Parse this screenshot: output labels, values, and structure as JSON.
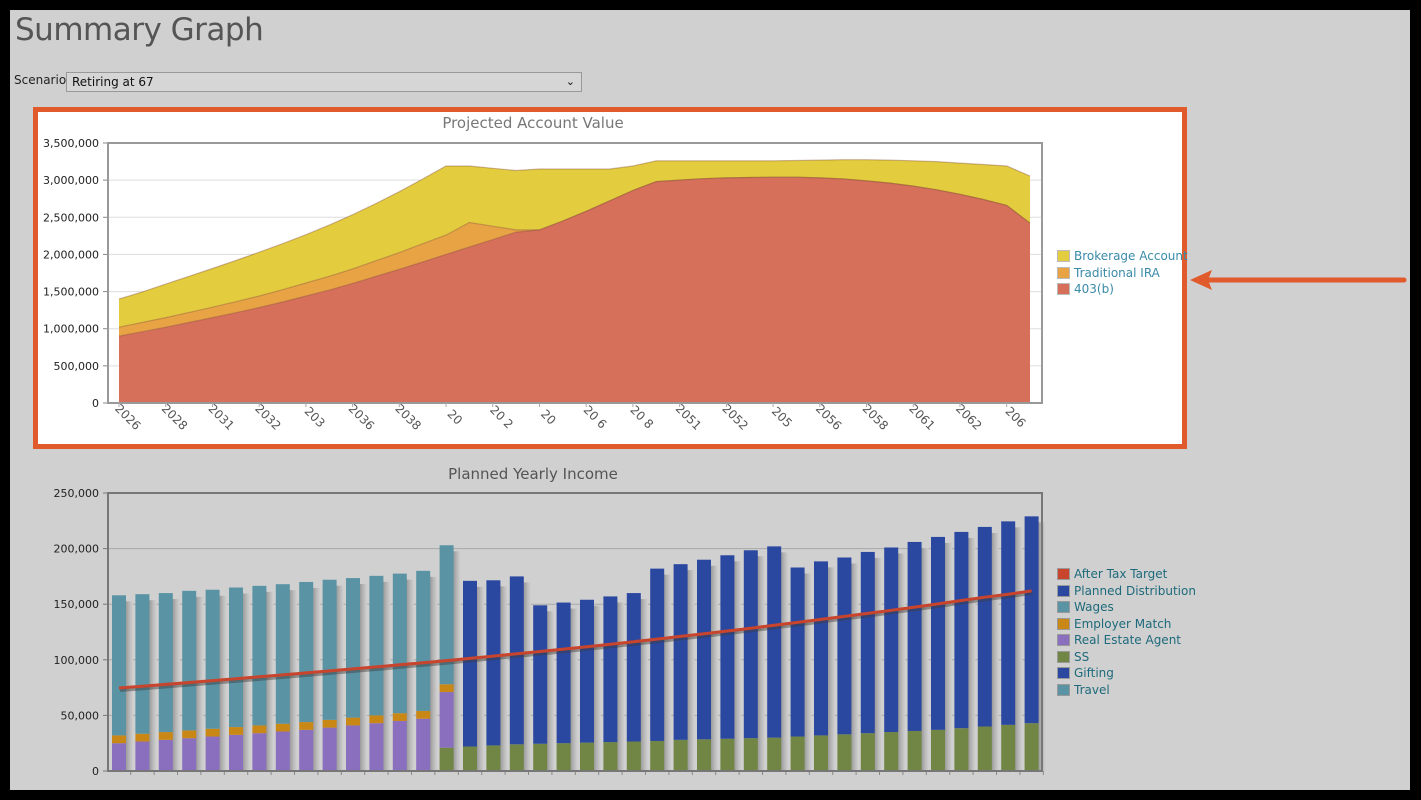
{
  "page": {
    "title": "Summary Graph",
    "scenario_label": "Scenario",
    "scenario_value": "Retiring at 67",
    "highlight_color": "#e05a2b"
  },
  "chart_data": [
    {
      "type": "area",
      "stacked": true,
      "title": "Projected Account Value",
      "xlabel": "",
      "ylabel": "",
      "ylim": [
        0,
        3500000
      ],
      "yticks": [
        0,
        500000,
        1000000,
        1500000,
        2000000,
        2500000,
        3000000,
        3500000
      ],
      "ytick_labels": [
        "0",
        "500,000",
        "1,000,000",
        "1,500,000",
        "2,000,000",
        "2,500,000",
        "3,000,000",
        "3,500,000"
      ],
      "xtick_labels": [
        "2026",
        "2028",
        "2031",
        "2032",
        "203",
        "2036",
        "2038",
        "20 ",
        "20 2",
        "20",
        "20 6",
        "20 8",
        "2051",
        "2052",
        "205",
        "2056",
        "2058",
        "2061",
        "2062",
        "206"
      ],
      "grid": true,
      "legend_position": "right",
      "x": [
        2026,
        2027,
        2028,
        2029,
        2030,
        2031,
        2032,
        2033,
        2034,
        2035,
        2036,
        2037,
        2038,
        2039,
        2040,
        2041,
        2042,
        2043,
        2044,
        2045,
        2046,
        2047,
        2048,
        2049,
        2050,
        2051,
        2052,
        2053,
        2054,
        2055,
        2056,
        2057,
        2058,
        2059,
        2060,
        2061,
        2062,
        2063,
        2064,
        2065
      ],
      "series": [
        {
          "name": "403(b)",
          "color": "#d6705a",
          "values": [
            900000,
            960000,
            1020000,
            1085000,
            1150000,
            1215000,
            1285000,
            1360000,
            1440000,
            1520000,
            1610000,
            1705000,
            1800000,
            1900000,
            2000000,
            2100000,
            2200000,
            2300000,
            2330000,
            2450000,
            2580000,
            2720000,
            2860000,
            2980000,
            3000000,
            3020000,
            3030000,
            3035000,
            3040000,
            3040000,
            3030000,
            3015000,
            2990000,
            2960000,
            2920000,
            2870000,
            2810000,
            2740000,
            2660000,
            2420000
          ]
        },
        {
          "name": "Traditional IRA",
          "color": "#e8a444",
          "values": [
            120000,
            125000,
            130000,
            135000,
            140000,
            148000,
            155000,
            165000,
            175000,
            185000,
            195000,
            210000,
            225000,
            245000,
            260000,
            330000,
            180000,
            30000,
            0,
            0,
            0,
            0,
            0,
            0,
            0,
            0,
            0,
            0,
            0,
            0,
            0,
            0,
            0,
            0,
            0,
            0,
            0,
            0,
            0,
            0
          ]
        },
        {
          "name": "Brokerage Account",
          "color": "#e3cd3f",
          "values": [
            380000,
            410000,
            450000,
            485000,
            520000,
            555000,
            590000,
            620000,
            650000,
            690000,
            730000,
            770000,
            820000,
            870000,
            930000,
            760000,
            780000,
            800000,
            820000,
            700000,
            570000,
            430000,
            330000,
            280000,
            260000,
            240000,
            230000,
            225000,
            220000,
            225000,
            240000,
            260000,
            285000,
            310000,
            340000,
            380000,
            420000,
            470000,
            530000,
            636000
          ]
        }
      ]
    },
    {
      "type": "bar",
      "stacked": true,
      "title": "Planned Yearly Income",
      "xlabel": "",
      "ylabel": "",
      "ylim": [
        0,
        250000
      ],
      "yticks": [
        0,
        50000,
        100000,
        150000,
        200000,
        250000
      ],
      "ytick_labels": [
        "0",
        "50,000",
        "100,000",
        "150,000",
        "200,000",
        "250,000"
      ],
      "grid": true,
      "legend_position": "right",
      "x": [
        2026,
        2027,
        2028,
        2029,
        2030,
        2031,
        2032,
        2033,
        2034,
        2035,
        2036,
        2037,
        2038,
        2039,
        2040,
        2041,
        2042,
        2043,
        2044,
        2045,
        2046,
        2047,
        2048,
        2049,
        2050,
        2051,
        2052,
        2053,
        2054,
        2055,
        2056,
        2057,
        2058,
        2059,
        2060,
        2061,
        2062,
        2063,
        2064,
        2065
      ],
      "legend": [
        {
          "name": "After Tax Target",
          "color": "#c8442c"
        },
        {
          "name": "Planned Distribution",
          "color": "#2b48a0"
        },
        {
          "name": "Wages",
          "color": "#5a93a4"
        },
        {
          "name": "Employer Match",
          "color": "#c98716"
        },
        {
          "name": "Real Estate Agent",
          "color": "#8a6fbf"
        },
        {
          "name": "SS",
          "color": "#718544"
        },
        {
          "name": "Gifting",
          "color": "#2b48a0"
        },
        {
          "name": "Travel",
          "color": "#5a93a4"
        }
      ],
      "series": [
        {
          "name": "SS",
          "color": "#718544",
          "values": [
            0,
            0,
            0,
            0,
            0,
            0,
            0,
            0,
            0,
            0,
            0,
            0,
            0,
            0,
            21000,
            22000,
            23000,
            24000,
            24500,
            25000,
            25500,
            26000,
            26500,
            27000,
            28000,
            28500,
            29000,
            29500,
            30000,
            31000,
            32000,
            33000,
            34000,
            35000,
            36000,
            37000,
            38500,
            40000,
            41500,
            43000
          ]
        },
        {
          "name": "Real Estate Agent",
          "color": "#8a6fbf",
          "values": [
            25000,
            26500,
            28000,
            29500,
            31000,
            32500,
            34000,
            35500,
            37000,
            39000,
            41000,
            43000,
            45000,
            47000,
            50000,
            0,
            0,
            0,
            0,
            0,
            0,
            0,
            0,
            0,
            0,
            0,
            0,
            0,
            0,
            0,
            0,
            0,
            0,
            0,
            0,
            0,
            0,
            0,
            0,
            0
          ]
        },
        {
          "name": "Employer Match",
          "color": "#c98716",
          "values": [
            7000,
            7000,
            7000,
            7000,
            7000,
            7000,
            7000,
            7000,
            7000,
            7000,
            7000,
            7000,
            7000,
            7000,
            7000,
            0,
            0,
            0,
            0,
            0,
            0,
            0,
            0,
            0,
            0,
            0,
            0,
            0,
            0,
            0,
            0,
            0,
            0,
            0,
            0,
            0,
            0,
            0,
            0,
            0
          ]
        },
        {
          "name": "Wages",
          "color": "#5a93a4",
          "values": [
            126000,
            125500,
            125000,
            125500,
            125000,
            125500,
            125500,
            125500,
            126000,
            126000,
            125500,
            125500,
            125500,
            126000,
            125000,
            0,
            0,
            0,
            0,
            0,
            0,
            0,
            0,
            0,
            0,
            0,
            0,
            0,
            0,
            0,
            0,
            0,
            0,
            0,
            0,
            0,
            0,
            0,
            0,
            0
          ]
        },
        {
          "name": "Planned Distribution",
          "color": "#2b48a0",
          "values": [
            0,
            0,
            0,
            0,
            0,
            0,
            0,
            0,
            0,
            0,
            0,
            0,
            0,
            0,
            0,
            149000,
            148500,
            151000,
            124500,
            126500,
            128500,
            131000,
            133500,
            155000,
            158000,
            161500,
            165000,
            169000,
            172000,
            152000,
            156500,
            159000,
            163000,
            166000,
            170000,
            173500,
            176500,
            179500,
            183000,
            186000
          ]
        }
      ],
      "line": {
        "name": "After Tax Target",
        "color": "#c8442c",
        "values": [
          74600,
          76200,
          77900,
          79600,
          81300,
          83000,
          84700,
          86400,
          88200,
          90000,
          91800,
          93600,
          95500,
          97400,
          99300,
          101300,
          103300,
          105400,
          107500,
          109600,
          111800,
          114000,
          116300,
          118600,
          121000,
          123400,
          125900,
          128400,
          131000,
          133600,
          136300,
          139000,
          141700,
          144500,
          147400,
          150300,
          153300,
          156300,
          159000,
          162000
        ]
      }
    }
  ]
}
